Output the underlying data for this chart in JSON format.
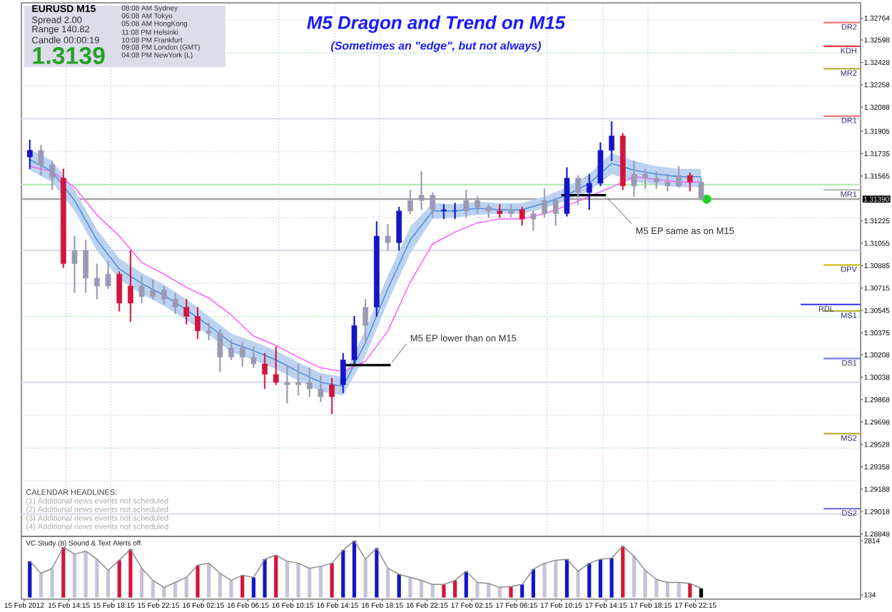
{
  "chart_data": [
    {
      "type": "candlestick",
      "title": "M5 Dragon and Trend on M15",
      "subtitle": "(Sometimes an \"edge\", but not always)",
      "x": [
        "2012-02-15T10:45",
        "2012-02-15T11:45",
        "2012-02-15T12:45",
        "2012-02-15T13:45",
        "2012-02-15T14:45",
        "2012-02-15T15:45",
        "2012-02-15T16:45",
        "2012-02-15T17:45",
        "2012-02-15T18:45",
        "2012-02-15T19:45",
        "2012-02-15T20:45",
        "2012-02-15T21:45",
        "2012-02-15T22:45",
        "2012-02-15T23:45",
        "2012-02-16T00:45",
        "2012-02-16T01:45",
        "2012-02-16T02:45",
        "2012-02-16T03:45",
        "2012-02-16T04:45",
        "2012-02-16T05:45",
        "2012-02-16T06:45",
        "2012-02-16T07:45",
        "2012-02-16T08:45",
        "2012-02-16T09:45",
        "2012-02-16T10:45",
        "2012-02-16T11:45",
        "2012-02-16T12:45",
        "2012-02-16T13:45",
        "2012-02-16T14:45",
        "2012-02-16T15:45",
        "2012-02-16T16:45",
        "2012-02-16T17:45",
        "2012-02-16T18:45",
        "2012-02-16T19:45",
        "2012-02-16T20:45",
        "2012-02-16T21:45",
        "2012-02-16T22:45",
        "2012-02-16T23:45",
        "2012-02-17T00:45",
        "2012-02-17T01:45",
        "2012-02-17T02:45",
        "2012-02-17T03:45",
        "2012-02-17T04:45",
        "2012-02-17T05:45",
        "2012-02-17T06:45",
        "2012-02-17T07:45",
        "2012-02-17T08:45",
        "2012-02-17T09:45",
        "2012-02-17T10:45",
        "2012-02-17T11:45",
        "2012-02-17T12:45",
        "2012-02-17T13:45",
        "2012-02-17T14:45",
        "2012-02-17T15:45",
        "2012-02-17T16:45",
        "2012-02-17T17:45",
        "2012-02-17T18:45",
        "2012-02-17T19:45",
        "2012-02-17T20:45",
        "2012-02-17T21:45",
        "2012-02-17T22:45"
      ],
      "ohlc": [
        [
          1.3171,
          1.3184,
          1.3162,
          1.3176
        ],
        [
          1.3176,
          1.318,
          1.3157,
          1.3165
        ],
        [
          1.3165,
          1.3168,
          1.3146,
          1.3155
        ],
        [
          1.3155,
          1.3162,
          1.3087,
          1.309
        ],
        [
          1.309,
          1.3111,
          1.3068,
          1.31
        ],
        [
          1.31,
          1.3108,
          1.3068,
          1.3079
        ],
        [
          1.3079,
          1.309,
          1.3063,
          1.3073
        ],
        [
          1.3073,
          1.3092,
          1.3071,
          1.3082
        ],
        [
          1.3082,
          1.3084,
          1.3054,
          1.306
        ],
        [
          1.306,
          1.31,
          1.3046,
          1.3073
        ],
        [
          1.3073,
          1.3081,
          1.306,
          1.3065
        ],
        [
          1.3065,
          1.3078,
          1.3063,
          1.307
        ],
        [
          1.307,
          1.3073,
          1.3059,
          1.3063
        ],
        [
          1.3063,
          1.3068,
          1.3052,
          1.3057
        ],
        [
          1.3057,
          1.3063,
          1.3044,
          1.305
        ],
        [
          1.305,
          1.3057,
          1.3033,
          1.3039
        ],
        [
          1.3039,
          1.3045,
          1.3032,
          1.3037
        ],
        [
          1.3037,
          1.304,
          1.3008,
          1.3019
        ],
        [
          1.3019,
          1.3032,
          1.3017,
          1.3026
        ],
        [
          1.3026,
          1.303,
          1.3012,
          1.3019
        ],
        [
          1.3019,
          1.3027,
          1.3011,
          1.3014
        ],
        [
          1.3014,
          1.3022,
          1.2995,
          1.3006
        ],
        [
          1.3006,
          1.3027,
          1.2998,
          1.3
        ],
        [
          1.3,
          1.3012,
          1.2984,
          1.2998
        ],
        [
          1.2998,
          1.3014,
          1.299,
          1.3
        ],
        [
          1.3,
          1.3011,
          1.2989,
          1.2995
        ],
        [
          1.2995,
          1.3005,
          1.2985,
          1.2989
        ],
        [
          1.2989,
          1.3003,
          1.2976,
          1.2998
        ],
        [
          1.2998,
          1.3022,
          1.2992,
          1.3017
        ],
        [
          1.3017,
          1.305,
          1.3014,
          1.3043
        ],
        [
          1.3043,
          1.3063,
          1.303,
          1.3057
        ],
        [
          1.3057,
          1.3122,
          1.305,
          1.3111
        ],
        [
          1.3111,
          1.312,
          1.31,
          1.3106
        ],
        [
          1.3106,
          1.3133,
          1.31,
          1.313
        ],
        [
          1.313,
          1.3146,
          1.3128,
          1.3138
        ],
        [
          1.3138,
          1.316,
          1.3131,
          1.3142
        ],
        [
          1.3142,
          1.3144,
          1.3125,
          1.3131
        ],
        [
          1.3131,
          1.3135,
          1.3124,
          1.313
        ],
        [
          1.313,
          1.3136,
          1.3124,
          1.313
        ],
        [
          1.313,
          1.3146,
          1.3125,
          1.3138
        ],
        [
          1.3138,
          1.3141,
          1.3128,
          1.3133
        ],
        [
          1.3133,
          1.3135,
          1.3125,
          1.313
        ],
        [
          1.313,
          1.3135,
          1.3125,
          1.3128
        ],
        [
          1.3128,
          1.3135,
          1.3125,
          1.3131
        ],
        [
          1.3131,
          1.3133,
          1.3119,
          1.3124
        ],
        [
          1.3124,
          1.313,
          1.3115,
          1.3128
        ],
        [
          1.3128,
          1.3147,
          1.3125,
          1.3138
        ],
        [
          1.3138,
          1.314,
          1.3119,
          1.3128
        ],
        [
          1.3128,
          1.3163,
          1.3126,
          1.3155
        ],
        [
          1.3155,
          1.3157,
          1.3135,
          1.3144
        ],
        [
          1.3144,
          1.3158,
          1.3131,
          1.3151
        ],
        [
          1.3151,
          1.3182,
          1.3149,
          1.3176
        ],
        [
          1.3176,
          1.3198,
          1.3168,
          1.3187
        ],
        [
          1.3187,
          1.3189,
          1.3146,
          1.3149
        ],
        [
          1.3149,
          1.3168,
          1.3141,
          1.3158
        ],
        [
          1.3158,
          1.3162,
          1.3147,
          1.3155
        ],
        [
          1.3155,
          1.316,
          1.3147,
          1.3152
        ],
        [
          1.3152,
          1.3158,
          1.3145,
          1.3149
        ],
        [
          1.3149,
          1.3164,
          1.3148,
          1.3157
        ],
        [
          1.3157,
          1.3159,
          1.3145,
          1.3152
        ],
        [
          1.3152,
          1.3155,
          1.3138,
          1.3139
        ]
      ],
      "colors": [
        "#1414c8",
        "#9a9ab4",
        "#9a9ab4",
        "#d4143c",
        "#9a9ab4",
        "#9a9ab4",
        "#9a9ab4",
        "#9a9ab4",
        "#d4143c",
        "#d4143c",
        "#9a9ab4",
        "#9a9ab4",
        "#9a9ab4",
        "#9a9ab4",
        "#d4143c",
        "#d4143c",
        "#9a9ab4",
        "#9a9ab4",
        "#9a9ab4",
        "#9a9ab4",
        "#9a9ab4",
        "#d4143c",
        "#d4143c",
        "#9a9ab4",
        "#9a9ab4",
        "#9a9ab4",
        "#9a9ab4",
        "#d4143c",
        "#1414c8",
        "#1414c8",
        "#9a9ab4",
        "#1414c8",
        "#9a9ab4",
        "#1414c8",
        "#9a9ab4",
        "#9a9ab4",
        "#9a9ab4",
        "#1414c8",
        "#1414c8",
        "#9a9ab4",
        "#9a9ab4",
        "#9a9ab4",
        "#d4143c",
        "#9a9ab4",
        "#d4143c",
        "#9a9ab4",
        "#9a9ab4",
        "#9a9ab4",
        "#1414c8",
        "#9a9ab4",
        "#1414c8",
        "#1414c8",
        "#1414c8",
        "#d4143c",
        "#9a9ab4",
        "#9a9ab4",
        "#9a9ab4",
        "#9a9ab4",
        "#9a9ab4",
        "#d4143c",
        "#9a9ab4"
      ],
      "series": [
        {
          "type": "line",
          "color": "#4c8cd8",
          "x": [
            "2012-02-15T10:45",
            "2012-02-15T12:45",
            "2012-02-15T14:45",
            "2012-02-15T16:45",
            "2012-02-15T18:45",
            "2012-02-15T20:45",
            "2012-02-15T22:45",
            "2012-02-16T00:45",
            "2012-02-16T02:45",
            "2012-02-16T04:45",
            "2012-02-16T06:45",
            "2012-02-16T08:45",
            "2012-02-16T10:45",
            "2012-02-16T12:45",
            "2012-02-16T14:45",
            "2012-02-16T16:45",
            "2012-02-16T18:45",
            "2012-02-16T20:45",
            "2012-02-16T22:45",
            "2012-02-17T00:45",
            "2012-02-17T02:45",
            "2012-02-17T04:45",
            "2012-02-17T06:45",
            "2012-02-17T08:45",
            "2012-02-17T10:45",
            "2012-02-17T12:45",
            "2012-02-17T14:45",
            "2012-02-17T16:45",
            "2012-02-17T18:45",
            "2012-02-17T20:45",
            "2012-02-17T22:45"
          ],
          "values": [
            1.3169,
            1.316,
            1.3138,
            1.3108,
            1.3086,
            1.3075,
            1.3066,
            1.3055,
            1.3043,
            1.303,
            1.3024,
            1.3017,
            1.3008,
            1.3,
            1.2997,
            1.303,
            1.3071,
            1.3108,
            1.313,
            1.313,
            1.3132,
            1.3131,
            1.3131,
            1.3136,
            1.3142,
            1.3151,
            1.3166,
            1.3161,
            1.3158,
            1.3156,
            1.3156
          ],
          "upper": [
            1.3177,
            1.3168,
            1.3146,
            1.3116,
            1.3094,
            1.3083,
            1.3074,
            1.3063,
            1.305,
            1.3037,
            1.3031,
            1.3024,
            1.3015,
            1.3007,
            1.3004,
            1.304,
            1.3081,
            1.3118,
            1.3136,
            1.3135,
            1.3137,
            1.3136,
            1.3136,
            1.3141,
            1.3148,
            1.3158,
            1.3174,
            1.3168,
            1.3164,
            1.3162,
            1.3162
          ],
          "lower": [
            1.3161,
            1.3152,
            1.313,
            1.31,
            1.3078,
            1.3067,
            1.3058,
            1.3047,
            1.3036,
            1.3023,
            1.3017,
            1.301,
            1.3001,
            1.2993,
            1.299,
            1.302,
            1.3061,
            1.3098,
            1.3124,
            1.3125,
            1.3127,
            1.3128,
            1.3128,
            1.3132,
            1.3138,
            1.3145,
            1.3158,
            1.3152,
            1.315,
            1.3148,
            1.3148
          ]
        },
        {
          "type": "line",
          "color": "#ff5cff",
          "x": [
            "2012-02-15T10:45",
            "2012-02-15T12:45",
            "2012-02-15T14:45",
            "2012-02-15T16:45",
            "2012-02-15T18:45",
            "2012-02-15T20:45",
            "2012-02-15T22:45",
            "2012-02-16T00:45",
            "2012-02-16T02:45",
            "2012-02-16T04:45",
            "2012-02-16T06:45",
            "2012-02-16T08:45",
            "2012-02-16T10:45",
            "2012-02-16T12:45",
            "2012-02-16T14:45",
            "2012-02-16T16:45",
            "2012-02-16T18:45",
            "2012-02-16T20:45",
            "2012-02-16T22:45",
            "2012-02-17T00:45",
            "2012-02-17T02:45",
            "2012-02-17T04:45",
            "2012-02-17T06:45",
            "2012-02-17T08:45",
            "2012-02-17T10:45",
            "2012-02-17T12:45",
            "2012-02-17T14:45",
            "2012-02-17T16:45",
            "2012-02-17T18:45",
            "2012-02-17T20:45",
            "2012-02-17T22:45"
          ],
          "values": [
            1.3164,
            1.316,
            1.3148,
            1.3127,
            1.3111,
            1.3091,
            1.3082,
            1.3072,
            1.3064,
            1.3051,
            1.3035,
            1.3028,
            1.3019,
            1.3011,
            1.3008,
            1.3016,
            1.3039,
            1.3076,
            1.3105,
            1.3114,
            1.3121,
            1.3124,
            1.3124,
            1.3128,
            1.3134,
            1.3141,
            1.3148,
            1.3156,
            1.3154,
            1.3152,
            1.3152
          ]
        },
        {
          "type": "line",
          "color": "#000000",
          "x": [
            "2012-02-16T14:45",
            "2012-02-16T19:00"
          ],
          "values": [
            1.3013,
            1.3013
          ]
        },
        {
          "type": "line",
          "color": "#000000",
          "x": [
            "2012-02-17T10:15",
            "2012-02-17T14:15"
          ],
          "values": [
            1.3142,
            1.3142
          ]
        },
        {
          "type": "scatter",
          "color": "#1ed41e",
          "marker": "circle",
          "x": [
            "2012-02-17T23:15"
          ],
          "values": [
            1.3139
          ]
        }
      ],
      "xlim": [
        "2012-02-15T10:00",
        "2012-02-18T13:00"
      ],
      "ylim": [
        1.2883,
        1.3288
      ],
      "yticks": [
        1.28848,
        1.29018,
        1.29188,
        1.29358,
        1.29528,
        1.29698,
        1.29868,
        1.30038,
        1.30208,
        1.30375,
        1.30545,
        1.30715,
        1.30885,
        1.31055,
        1.31225,
        1.31565,
        1.31735,
        1.31905,
        1.32088,
        1.32258,
        1.32428,
        1.32598,
        1.32764
      ],
      "tick_labels": "y",
      "ref_lines": [
        {
          "axis": "y",
          "value": 1.3275,
          "color": "#d2d2e6",
          "line_style": "dotted"
        },
        {
          "axis": "y",
          "value": 1.325,
          "color": "#96dc96",
          "line_style": "dotted"
        },
        {
          "axis": "y",
          "value": 1.3225,
          "color": "#d2d2e6",
          "line_style": "dotted"
        },
        {
          "axis": "y",
          "value": 1.32,
          "color": "#dcdcf0",
          "line_style": "solid"
        },
        {
          "axis": "y",
          "value": 1.3175,
          "color": "#d2d2e6",
          "line_style": "dotted"
        },
        {
          "axis": "y",
          "value": 1.315,
          "color": "#b4ecb4",
          "line_style": "solid"
        },
        {
          "axis": "y",
          "value": 1.3125,
          "color": "#d2d2e6",
          "line_style": "dotted"
        },
        {
          "axis": "y",
          "value": 1.31,
          "color": "#dcdcf0",
          "line_style": "solid"
        },
        {
          "axis": "y",
          "value": 1.3075,
          "color": "#d2d2e6",
          "line_style": "dotted"
        },
        {
          "axis": "y",
          "value": 1.305,
          "color": "#96dc96",
          "line_style": "dotted"
        },
        {
          "axis": "y",
          "value": 1.3025,
          "color": "#d2d2e6",
          "line_style": "dotted"
        },
        {
          "axis": "y",
          "value": 1.3,
          "color": "#dcdcf0",
          "line_style": "solid"
        },
        {
          "axis": "y",
          "value": 1.2975,
          "color": "#d2d2e6",
          "line_style": "dotted"
        },
        {
          "axis": "y",
          "value": 1.295,
          "color": "#96dc96",
          "line_style": "dotted"
        },
        {
          "axis": "y",
          "value": 1.2925,
          "color": "#d2d2e6",
          "line_style": "dotted"
        },
        {
          "axis": "y",
          "value": 1.29,
          "color": "#dcdcf0",
          "line_style": "solid"
        },
        {
          "axis": "x",
          "value": "2012-02-15T14:00",
          "color": "#c4c4e4",
          "line_style": "dotted"
        },
        {
          "axis": "x",
          "value": "2012-02-15T18:00",
          "color": "#c4c4e4",
          "line_style": "dotted"
        },
        {
          "axis": "x",
          "value": "2012-02-16T09:00",
          "color": "#c4c4e4",
          "line_style": "dotted"
        },
        {
          "axis": "x",
          "value": "2012-02-16T14:00",
          "color": "#c4c4e4",
          "line_style": "dotted"
        },
        {
          "axis": "x",
          "value": "2012-02-16T18:00",
          "color": "#c4c4e4",
          "line_style": "dotted"
        },
        {
          "axis": "x",
          "value": "2012-02-17T09:00",
          "color": "#c4c4e4",
          "line_style": "dotted"
        },
        {
          "axis": "x",
          "value": "2012-02-17T14:00",
          "color": "#c4c4e4",
          "line_style": "dotted"
        },
        {
          "axis": "x",
          "value": "2012-02-17T18:00",
          "color": "#c4c4e4",
          "line_style": "dotted"
        },
        {
          "axis": "y",
          "value": 1.3139,
          "label": "1.31390",
          "color": "#a0a0a0"
        },
        {
          "axis": "y",
          "value": 1.3273,
          "label": "DR2",
          "color": "#f07878"
        },
        {
          "axis": "y",
          "value": 1.3255,
          "label": "KDH",
          "color": "#ec3c3c"
        },
        {
          "axis": "y",
          "value": 1.3238,
          "label": "MR2",
          "color": "#bab436"
        },
        {
          "axis": "y",
          "value": 1.3202,
          "label": "DR1",
          "color": "#f07878"
        },
        {
          "axis": "y",
          "value": 1.3146,
          "label": "MR1",
          "color": "#b4b4b4"
        },
        {
          "axis": "y",
          "value": 1.3089,
          "label": "DPV",
          "color": "#c8b400"
        },
        {
          "axis": "y",
          "value": 1.3054,
          "label": "MS1",
          "color": "#bab436"
        },
        {
          "axis": "y",
          "value": 1.3059,
          "label": "RDL",
          "color": "#4646e6"
        },
        {
          "axis": "y",
          "value": 1.3018,
          "label": "DS1",
          "color": "#7878ea"
        },
        {
          "axis": "y",
          "value": 1.2961,
          "label": "MS2",
          "color": "#bab436"
        },
        {
          "axis": "y",
          "value": 1.2904,
          "label": "DS2",
          "color": "#7878ea"
        }
      ],
      "annotations": [
        {
          "text": "M5 EP lower than on M15",
          "x": "2012-02-16T19:00",
          "y": 1.3013
        },
        {
          "text": "M5 EP same as on M15",
          "x": "2012-02-17T14:15",
          "y": 1.3142
        },
        "EURUSD M15",
        "Spread 2.00",
        "Range 140.82",
        "Candle 00:00:19",
        "1.3139",
        "08:08 AM Sydney",
        "06:08 AM Tokyo",
        "05:08 AM HongKong",
        "11:08 PM Helsinki",
        "10:08 PM Frankfurt",
        "09:08 PM London (GMT)",
        "04:08 PM NewYork (L)",
        "CALENDAR HEADLINES:",
        "(1) Additional news events not scheduled",
        "(2) Additional news events not scheduled",
        "(3) Additional news events not scheduled",
        "(4) Additional news events not scheduled"
      ]
    },
    {
      "type": "bar",
      "title": "VC Study (8) Sound & Text Alerts off.",
      "x": [
        "2012-02-15T10:45",
        "2012-02-15T11:45",
        "2012-02-15T12:45",
        "2012-02-15T13:45",
        "2012-02-15T14:45",
        "2012-02-15T15:45",
        "2012-02-15T16:45",
        "2012-02-15T17:45",
        "2012-02-15T18:45",
        "2012-02-15T19:45",
        "2012-02-15T20:45",
        "2012-02-15T21:45",
        "2012-02-15T22:45",
        "2012-02-15T23:45",
        "2012-02-16T00:45",
        "2012-02-16T01:45",
        "2012-02-16T02:45",
        "2012-02-16T03:45",
        "2012-02-16T04:45",
        "2012-02-16T05:45",
        "2012-02-16T06:45",
        "2012-02-16T07:45",
        "2012-02-16T08:45",
        "2012-02-16T09:45",
        "2012-02-16T10:45",
        "2012-02-16T11:45",
        "2012-02-16T12:45",
        "2012-02-16T13:45",
        "2012-02-16T14:45",
        "2012-02-16T15:45",
        "2012-02-16T16:45",
        "2012-02-16T17:45",
        "2012-02-16T18:45",
        "2012-02-16T19:45",
        "2012-02-16T20:45",
        "2012-02-16T21:45",
        "2012-02-16T22:45",
        "2012-02-16T23:45",
        "2012-02-17T00:45",
        "2012-02-17T01:45",
        "2012-02-17T02:45",
        "2012-02-17T03:45",
        "2012-02-17T04:45",
        "2012-02-17T05:45",
        "2012-02-17T06:45",
        "2012-02-17T07:45",
        "2012-02-17T08:45",
        "2012-02-17T09:45",
        "2012-02-17T10:45",
        "2012-02-17T11:45",
        "2012-02-17T12:45",
        "2012-02-17T13:45",
        "2012-02-17T14:45",
        "2012-02-17T15:45",
        "2012-02-17T16:45",
        "2012-02-17T17:45",
        "2012-02-17T18:45",
        "2012-02-17T19:45",
        "2012-02-17T20:45",
        "2012-02-17T21:45",
        "2012-02-17T22:45"
      ],
      "series": [
        {
          "type": "bar",
          "colors": [
            "#1414c8",
            "#c4c4d6",
            "#c4c4d6",
            "#d4143c",
            "#c4c4d6",
            "#c4c4d6",
            "#c4c4d6",
            "#c4c4d6",
            "#d4143c",
            "#d4143c",
            "#c4c4d6",
            "#c4c4d6",
            "#c4c4d6",
            "#c4c4d6",
            "#c4c4d6",
            "#d4143c",
            "#c4c4d6",
            "#c4c4d6",
            "#c4c4d6",
            "#d4143c",
            "#1414c8",
            "#1414c8",
            "#d4143c",
            "#c4c4d6",
            "#c4c4d6",
            "#c4c4d6",
            "#c4c4d6",
            "#d4143c",
            "#1414c8",
            "#1414c8",
            "#c4c4d6",
            "#1414c8",
            "#c4c4d6",
            "#1414c8",
            "#c4c4d6",
            "#c4c4d6",
            "#c4c4d6",
            "#d4143c",
            "#d4143c",
            "#1414c8",
            "#c4c4d6",
            "#c4c4d6",
            "#c4c4d6",
            "#d4143c",
            "#1414c8",
            "#1414c8",
            "#c4c4d6",
            "#c4c4d6",
            "#1414c8",
            "#c4c4d6",
            "#1414c8",
            "#1414c8",
            "#1414c8",
            "#d4143c",
            "#c4c4d6",
            "#c4c4d6",
            "#c4c4d6",
            "#c4c4d6",
            "#c4c4d6",
            "#d4143c",
            "#000000"
          ],
          "values": [
            1800,
            1200,
            1450,
            2500,
            2150,
            2300,
            1900,
            1350,
            1850,
            2400,
            1450,
            850,
            500,
            750,
            1000,
            1600,
            1700,
            1200,
            850,
            1100,
            1000,
            1900,
            2100,
            1800,
            1700,
            1450,
            1550,
            1700,
            2350,
            2814,
            1900,
            2450,
            1450,
            1150,
            1000,
            850,
            650,
            650,
            850,
            1300,
            750,
            700,
            500,
            550,
            650,
            1400,
            1700,
            1850,
            1900,
            1300,
            1700,
            1900,
            1950,
            2550,
            2050,
            1350,
            900,
            750,
            750,
            700,
            450
          ]
        },
        {
          "type": "line",
          "color": "#8c8c8c",
          "values": [
            1800,
            1200,
            1450,
            2500,
            2150,
            2300,
            1900,
            1350,
            1850,
            2400,
            1450,
            850,
            500,
            750,
            1000,
            1600,
            1700,
            1200,
            850,
            1100,
            1000,
            1900,
            2100,
            1800,
            1700,
            1450,
            1550,
            1700,
            2350,
            2814,
            1900,
            2450,
            1450,
            1150,
            1000,
            850,
            650,
            650,
            850,
            1300,
            750,
            700,
            500,
            550,
            650,
            1400,
            1700,
            1850,
            1900,
            1300,
            1700,
            1900,
            1950,
            2550,
            2050,
            1350,
            900,
            750,
            750,
            700,
            450
          ]
        }
      ],
      "xlim": [
        "2012-02-15T10:00",
        "2012-02-18T13:00"
      ],
      "ylim": [
        -80,
        3030
      ],
      "yticks": [
        134,
        2814
      ],
      "xticks": [
        {
          "value": "2012-02-15T10:15",
          "label": "15 Feb 2012"
        },
        {
          "value": "2012-02-15T14:15",
          "label": "15 Feb 14:15"
        },
        {
          "value": "2012-02-15T18:15",
          "label": "15 Feb 18:15"
        },
        {
          "value": "2012-02-15T22:15",
          "label": "15 Feb 22:15"
        },
        {
          "value": "2012-02-16T02:15",
          "label": "16 Feb 02:15"
        },
        {
          "value": "2012-02-16T06:15",
          "label": "16 Feb 06:15"
        },
        {
          "value": "2012-02-16T10:15",
          "label": "16 Feb 10:15"
        },
        {
          "value": "2012-02-16T14:15",
          "label": "16 Feb 14:15"
        },
        {
          "value": "2012-02-16T18:15",
          "label": "16 Feb 18:15"
        },
        {
          "value": "2012-02-16T22:15",
          "label": "16 Feb 22:15"
        },
        {
          "value": "2012-02-17T02:15",
          "label": "17 Feb 02:15"
        },
        {
          "value": "2012-02-17T06:15",
          "label": "17 Feb 06:15"
        },
        {
          "value": "2012-02-17T10:15",
          "label": "17 Feb 10:15"
        },
        {
          "value": "2012-02-17T14:15",
          "label": "17 Feb 14:15"
        },
        {
          "value": "2012-02-17T18:15",
          "label": "17 Feb 18:15"
        },
        {
          "value": "2012-02-17T22:15",
          "label": "17 Feb 22:15"
        }
      ]
    }
  ]
}
